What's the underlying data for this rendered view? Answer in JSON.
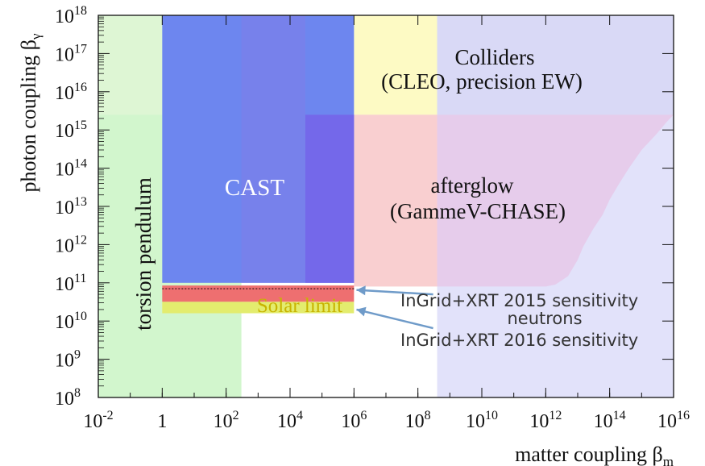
{
  "chart_data": {
    "type": "area",
    "title": "",
    "xlabel": "matter coupling β",
    "xlabel_sub": "m",
    "ylabel": "photon coupling β",
    "ylabel_sub": "γ",
    "xscale": "log",
    "yscale": "log",
    "xlim": [
      0.01,
      1e+16
    ],
    "ylim": [
      100000000.0,
      1e+18
    ],
    "x_ticks": [
      {
        "value": 0.01,
        "base": "10",
        "exp": "-2"
      },
      {
        "value": 1,
        "base": "1",
        "exp": ""
      },
      {
        "value": 100,
        "base": "10",
        "exp": "2"
      },
      {
        "value": 10000,
        "base": "10",
        "exp": "4"
      },
      {
        "value": 1000000.0,
        "base": "10",
        "exp": "6"
      },
      {
        "value": 100000000.0,
        "base": "10",
        "exp": "8"
      },
      {
        "value": 10000000000.0,
        "base": "10",
        "exp": "10"
      },
      {
        "value": 1000000000000.0,
        "base": "10",
        "exp": "12"
      },
      {
        "value": 100000000000000.0,
        "base": "10",
        "exp": "14"
      },
      {
        "value": 1e+16,
        "base": "10",
        "exp": "16"
      }
    ],
    "y_ticks": [
      {
        "value": 100000000.0,
        "base": "10",
        "exp": "8"
      },
      {
        "value": 1000000000.0,
        "base": "10",
        "exp": "9"
      },
      {
        "value": 10000000000.0,
        "base": "10",
        "exp": "10"
      },
      {
        "value": 100000000000.0,
        "base": "10",
        "exp": "11"
      },
      {
        "value": 1000000000000.0,
        "base": "10",
        "exp": "12"
      },
      {
        "value": 10000000000000.0,
        "base": "10",
        "exp": "13"
      },
      {
        "value": 100000000000000.0,
        "base": "10",
        "exp": "14"
      },
      {
        "value": 1000000000000000.0,
        "base": "10",
        "exp": "15"
      },
      {
        "value": 1e+16,
        "base": "10",
        "exp": "16"
      },
      {
        "value": 1e+17,
        "base": "10",
        "exp": "17"
      },
      {
        "value": 1e+18,
        "base": "10",
        "exp": "18"
      }
    ],
    "regions": [
      {
        "name": "torsion-pendulum",
        "x": [
          0.01,
          300
        ],
        "y": [
          100000000.0,
          1e+18
        ],
        "color": "#cdf5c8",
        "opacity": 0.9
      },
      {
        "name": "colliders",
        "x": [
          0.01,
          1e+16
        ],
        "y": [
          2500000000000000.0,
          1e+18
        ],
        "color": "#e6f7d8",
        "opacity": 0.6
      },
      {
        "name": "colliders-yellow",
        "x": [
          1000000.0,
          400000000.0
        ],
        "y": [
          2500000000000000.0,
          1e+18
        ],
        "color": "#fdfac4",
        "opacity": 1
      },
      {
        "name": "colliders-lavender",
        "x": [
          400000000.0,
          1e+16
        ],
        "y": [
          2500000000000000.0,
          1e+18
        ],
        "color": "#dadbf0",
        "opacity": 1
      },
      {
        "name": "afterglow",
        "x": [
          1000000.0,
          400000000.0
        ],
        "y": [
          80000000000.0,
          2500000000000000.0
        ],
        "color": "#f9cfd0",
        "opacity": 1
      },
      {
        "name": "neutrons",
        "x": [
          400000000.0,
          1e+16
        ],
        "y": [
          100000000.0,
          1e+18
        ],
        "color": "#d8d8f8",
        "opacity": 0.75
      },
      {
        "name": "cast",
        "x": [
          1,
          1000000.0
        ],
        "y": [
          100000000000.0,
          1e+18
        ],
        "color": "#6d86ef",
        "opacity": 1
      },
      {
        "name": "cast-dark",
        "x": [
          30000,
          1000000.0
        ],
        "y": [
          100000000000.0,
          2500000000000000.0
        ],
        "color": "#7468ea",
        "opacity": 1
      },
      {
        "name": "cast-light",
        "x": [
          300,
          30000
        ],
        "y": [
          100000000000.0,
          1e+18
        ],
        "color": "#7f7de8",
        "opacity": 0.55
      },
      {
        "name": "solar-limit",
        "x": [
          1,
          1000000.0
        ],
        "y": [
          16000000000.0,
          32000000000.0
        ],
        "color": "#e3ec6e",
        "opacity": 1
      },
      {
        "name": "sensitivity-2015",
        "x": [
          1,
          1000000.0
        ],
        "y": [
          32000000000.0,
          85000000000.0
        ],
        "color": "#ee6f70",
        "opacity": 1
      }
    ],
    "afterglow_edge": [
      [
        1e+16,
        2500000000000000.0
      ],
      [
        6000000000000000.0,
        1600000000000000.0
      ],
      [
        3000000000000000.0,
        800000000000000.0
      ],
      [
        1000000000000000.0,
        300000000000000.0
      ],
      [
        400000000000000.0,
        100000000000000.0
      ],
      [
        200000000000000.0,
        40000000000000.0
      ],
      [
        100000000000000.0,
        15000000000000.0
      ],
      [
        60000000000000.0,
        6000000000000.0
      ],
      [
        30000000000000.0,
        2500000000000.0
      ],
      [
        15000000000000.0,
        900000000000.0
      ],
      [
        10000000000000.0,
        400000000000.0
      ],
      [
        5000000000000.0,
        150000000000.0
      ],
      [
        2000000000000.0,
        90000000000.0
      ],
      [
        1000000000000.0,
        80000000000.0
      ]
    ],
    "sensitivity_line_y": 70000000000.0,
    "annotations": {
      "cast": "CAST",
      "torsion": "torsion pendulum",
      "colliders_line1": "Colliders",
      "colliders_line2": "(CLEO, precision EW)",
      "afterglow_line1": "afterglow",
      "afterglow_line2": "(GammeV-CHASE)",
      "solar": "Solar limit",
      "ingrid2015": "InGrid+XRT 2015 sensitivity",
      "neutrons": "neutrons",
      "ingrid2016": "InGrid+XRT 2016 sensitivity"
    },
    "arrows": [
      {
        "name": "arrow-2015",
        "from": [
          300000000.0,
          50000000000.0
        ],
        "to": [
          1200000.0,
          65000000000.0
        ]
      },
      {
        "name": "arrow-2016",
        "from": [
          300000000.0,
          6500000000.0
        ],
        "to": [
          1200000.0,
          20000000000.0
        ]
      }
    ],
    "colors": {
      "axis": "#111111",
      "arrow": "#6f9bc9",
      "solar_text": "#c8b400",
      "sensitivity_dot": "#3a1a1a"
    }
  }
}
